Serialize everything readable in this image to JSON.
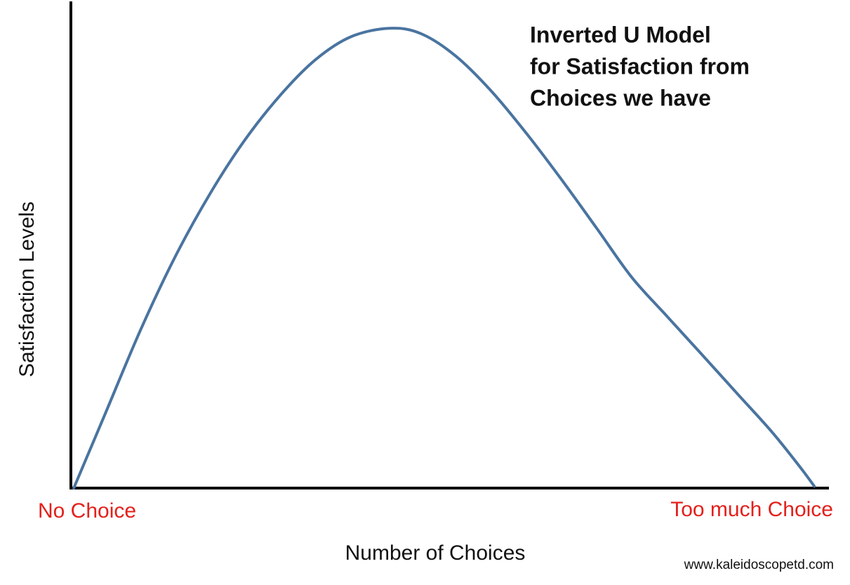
{
  "chart_data": {
    "type": "line",
    "title_lines": [
      "Inverted U Model",
      "for Satisfaction from",
      "Choices we have"
    ],
    "x_label": "Number of Choices",
    "y_label": "Satisfaction Levels",
    "x_start_label": "No Choice",
    "x_end_label": "Too much Choice",
    "source": "www.kaleidoscopetd.com",
    "x": [
      0.2,
      4.4,
      9.2,
      13.9,
      18.6,
      23.2,
      28.1,
      32.8,
      37.6,
      42.8,
      47.0,
      51.7,
      56.5,
      61.2,
      65.9,
      70.7,
      75.4,
      80.1,
      84.9,
      89.6,
      94.3,
      98.1,
      100
    ],
    "values": [
      0,
      15.1,
      32.4,
      47.5,
      60.4,
      71.2,
      80.6,
      87.8,
      92.5,
      94.2,
      93.1,
      88.5,
      81.3,
      72.7,
      63.3,
      53.2,
      43.2,
      35.3,
      27.3,
      19.4,
      11.5,
      4.3,
      0.4
    ],
    "color": "#4a74a0",
    "label_color": "#e3201b",
    "xlim": [
      0,
      100
    ],
    "ylim": [
      0,
      100
    ]
  }
}
